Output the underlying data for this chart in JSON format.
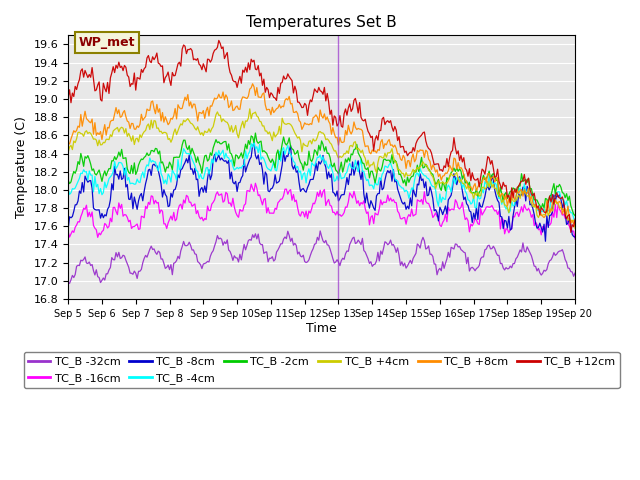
{
  "title": "Temperatures Set B",
  "xlabel": "Time",
  "ylabel": "Temperature (C)",
  "ylim": [
    16.8,
    19.7
  ],
  "xlim": [
    0,
    360
  ],
  "background_color": "#e8e8e8",
  "annotation_text": "WP_met",
  "annotation_color": "#8B0000",
  "annotation_bg": "#f5f5dc",
  "colors": {
    "TC_B -32cm": "#9932CC",
    "TC_B -16cm": "#FF00FF",
    "TC_B -8cm": "#0000CD",
    "TC_B -4cm": "#00FFFF",
    "TC_B -2cm": "#00CC00",
    "TC_B +4cm": "#CCCC00",
    "TC_B +8cm": "#FF8C00",
    "TC_B +12cm": "#CC0000"
  },
  "tick_labels": [
    "Sep 5",
    "Sep 6",
    "Sep 7",
    "Sep 8",
    "Sep 9",
    "Sep 10",
    "Sep 11",
    "Sep 12",
    "Sep 13",
    "Sep 14",
    "Sep 15",
    "Sep 16",
    "Sep 17",
    "Sep 18",
    "Sep 19",
    "Sep 20"
  ],
  "tick_positions": [
    0,
    24,
    48,
    72,
    96,
    120,
    144,
    168,
    192,
    216,
    240,
    264,
    288,
    312,
    336,
    360
  ],
  "yticks": [
    16.8,
    17.0,
    17.2,
    17.4,
    17.6,
    17.8,
    18.0,
    18.2,
    18.4,
    18.6,
    18.8,
    19.0,
    19.2,
    19.4,
    19.6
  ],
  "vline_x": 192,
  "series_params": {
    "TC_B -32cm": {
      "base": 17.1,
      "peak_val": 17.38,
      "end_val": 17.2,
      "diurnal_amp": 0.13,
      "noise_std": 0.03,
      "peak_hour": 130
    },
    "TC_B -16cm": {
      "base": 17.6,
      "peak_val": 17.9,
      "end_val": 17.65,
      "diurnal_amp": 0.12,
      "noise_std": 0.04,
      "peak_hour": 130
    },
    "TC_B -8cm": {
      "base": 17.85,
      "peak_val": 18.25,
      "end_val": 17.7,
      "diurnal_amp": 0.2,
      "noise_std": 0.06,
      "peak_hour": 120
    },
    "TC_B -4cm": {
      "base": 18.05,
      "peak_val": 18.37,
      "end_val": 17.8,
      "diurnal_amp": 0.12,
      "noise_std": 0.04,
      "peak_hour": 130
    },
    "TC_B -2cm": {
      "base": 18.2,
      "peak_val": 18.48,
      "end_val": 17.9,
      "diurnal_amp": 0.11,
      "noise_std": 0.04,
      "peak_hour": 130
    },
    "TC_B +4cm": {
      "base": 18.55,
      "peak_val": 18.75,
      "end_val": 17.7,
      "diurnal_amp": 0.09,
      "noise_std": 0.03,
      "peak_hour": 130
    },
    "TC_B +8cm": {
      "base": 18.65,
      "peak_val": 19.02,
      "end_val": 17.7,
      "diurnal_amp": 0.1,
      "noise_std": 0.04,
      "peak_hour": 130
    },
    "TC_B +12cm": {
      "base": 19.13,
      "peak_val": 19.47,
      "end_val": 17.75,
      "diurnal_amp": 0.14,
      "noise_std": 0.05,
      "peak_hour": 100
    }
  }
}
